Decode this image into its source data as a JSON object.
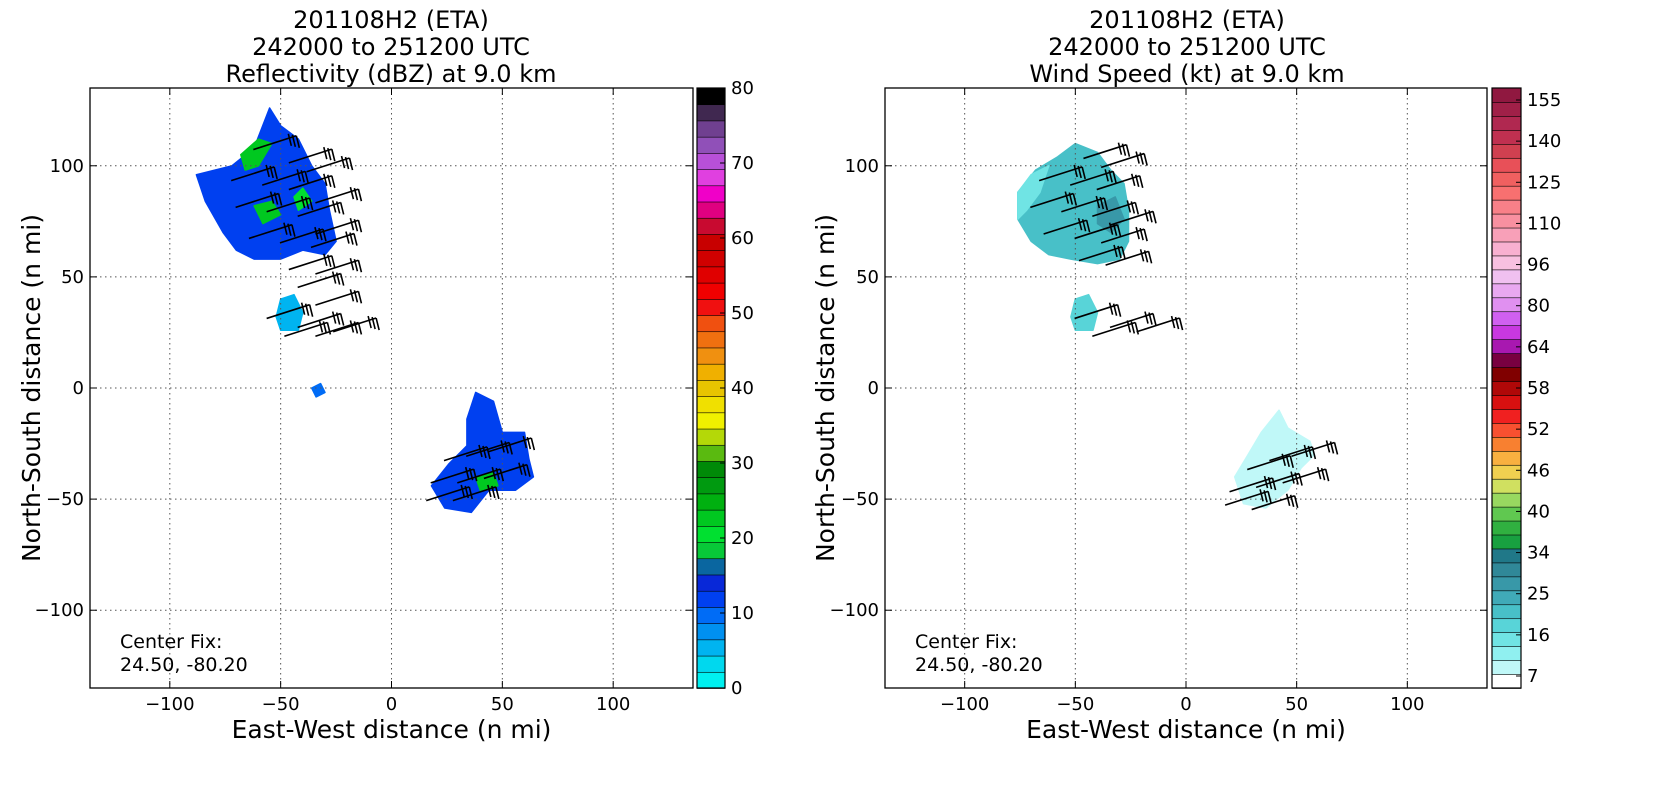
{
  "chart_data": [
    {
      "type": "heatmap",
      "title_lines": [
        "201108H2 (ETA)",
        "242000 to 251200 UTC",
        "Reflectivity (dBZ) at 9.0 km"
      ],
      "xlabel": "East-West distance (n mi)",
      "ylabel": "North-South distance (n mi)",
      "xlim": [
        -136,
        136
      ],
      "ylim": [
        -135,
        135
      ],
      "xticks": [
        -100,
        -50,
        0,
        50,
        100
      ],
      "yticks": [
        -100,
        -50,
        0,
        50,
        100
      ],
      "xtick_labels": [
        "−100",
        "−50",
        "0",
        "50",
        "100"
      ],
      "ytick_labels": [
        "−100",
        "−50",
        "0",
        "50",
        "100"
      ],
      "grid": true,
      "annotation": [
        "Center Fix:",
        "24.50, -80.20"
      ],
      "colorbar": {
        "min": 0,
        "max": 80,
        "tick_values": [
          0,
          10,
          20,
          30,
          40,
          50,
          60,
          70,
          80
        ],
        "tick_labels": [
          "0",
          "10",
          "20",
          "30",
          "40",
          "50",
          "60",
          "70",
          "80"
        ],
        "colors": [
          "#00f0f0",
          "#00d8ee",
          "#00b4f0",
          "#0090f0",
          "#006cf6",
          "#0040f0",
          "#0828d8",
          "#0a66a0",
          "#08c838",
          "#00e030",
          "#00c820",
          "#00b010",
          "#009a10",
          "#008a08",
          "#5aba10",
          "#b4d808",
          "#f0f000",
          "#f0e000",
          "#e8c400",
          "#f0b000",
          "#f09010",
          "#f07010",
          "#f05010",
          "#f01010",
          "#f00000",
          "#e00000",
          "#d00000",
          "#c80000",
          "#c80a30",
          "#e00080",
          "#f000c8",
          "#e040e0",
          "#b850d8",
          "#9050b8",
          "#704090",
          "#402850",
          "#000000"
        ]
      },
      "echo_regions": [
        {
          "name": "north-echo",
          "level_dbz": 12,
          "points": [
            [
              -55,
              126
            ],
            [
              -50,
              118
            ],
            [
              -42,
              112
            ],
            [
              -36,
              100
            ],
            [
              -30,
              92
            ],
            [
              -28,
              80
            ],
            [
              -25,
              66
            ],
            [
              -30,
              60
            ],
            [
              -40,
              62
            ],
            [
              -50,
              58
            ],
            [
              -62,
              58
            ],
            [
              -70,
              62
            ],
            [
              -76,
              70
            ],
            [
              -84,
              84
            ],
            [
              -88,
              96
            ],
            [
              -72,
              100
            ],
            [
              -62,
              108
            ]
          ]
        },
        {
          "name": "north-echo-core-1",
          "level_dbz": 22,
          "points": [
            [
              -68,
              105
            ],
            [
              -60,
              112
            ],
            [
              -54,
              110
            ],
            [
              -60,
              100
            ],
            [
              -66,
              98
            ]
          ]
        },
        {
          "name": "north-echo-core-2",
          "level_dbz": 22,
          "points": [
            [
              -62,
              82
            ],
            [
              -54,
              84
            ],
            [
              -50,
              78
            ],
            [
              -58,
              74
            ]
          ]
        },
        {
          "name": "north-echo-core-3",
          "level_dbz": 20,
          "points": [
            [
              -44,
              86
            ],
            [
              -40,
              90
            ],
            [
              -36,
              84
            ],
            [
              -42,
              80
            ]
          ]
        },
        {
          "name": "mid-echo",
          "level_dbz": 5,
          "points": [
            [
              -50,
              40
            ],
            [
              -44,
              42
            ],
            [
              -40,
              34
            ],
            [
              -42,
              26
            ],
            [
              -50,
              26
            ],
            [
              -52,
              32
            ]
          ]
        },
        {
          "name": "small-echo",
          "level_dbz": 10,
          "points": [
            [
              -36,
              0
            ],
            [
              -32,
              2
            ],
            [
              -30,
              -2
            ],
            [
              -34,
              -4
            ]
          ]
        },
        {
          "name": "south-echo",
          "level_dbz": 11,
          "points": [
            [
              38,
              -2
            ],
            [
              46,
              -6
            ],
            [
              50,
              -20
            ],
            [
              60,
              -20
            ],
            [
              62,
              -32
            ],
            [
              64,
              -40
            ],
            [
              56,
              -46
            ],
            [
              44,
              -46
            ],
            [
              36,
              -56
            ],
            [
              24,
              -54
            ],
            [
              18,
              -44
            ],
            [
              26,
              -34
            ],
            [
              34,
              -26
            ],
            [
              34,
              -14
            ]
          ]
        },
        {
          "name": "south-echo-core",
          "level_dbz": 22,
          "points": [
            [
              38,
              -40
            ],
            [
              46,
              -38
            ],
            [
              48,
              -44
            ],
            [
              40,
              -46
            ]
          ]
        }
      ],
      "wind_barbs": [
        [
          -56,
          110
        ],
        [
          -40,
          104
        ],
        [
          -32,
          100
        ],
        [
          -66,
          96
        ],
        [
          -52,
          94
        ],
        [
          -40,
          92
        ],
        [
          -28,
          86
        ],
        [
          -64,
          84
        ],
        [
          -50,
          82
        ],
        [
          -36,
          80
        ],
        [
          -28,
          72
        ],
        [
          -58,
          70
        ],
        [
          -44,
          68
        ],
        [
          -30,
          66
        ],
        [
          -40,
          56
        ],
        [
          -28,
          54
        ],
        [
          -36,
          48
        ],
        [
          -28,
          40
        ],
        [
          -50,
          34
        ],
        [
          -36,
          30
        ],
        [
          -20,
          28
        ],
        [
          -42,
          26
        ],
        [
          -28,
          26
        ],
        [
          30,
          -30
        ],
        [
          40,
          -28
        ],
        [
          50,
          -26
        ],
        [
          24,
          -40
        ],
        [
          36,
          -40
        ],
        [
          48,
          -38
        ],
        [
          22,
          -48
        ],
        [
          34,
          -48
        ]
      ]
    },
    {
      "type": "heatmap",
      "title_lines": [
        "201108H2 (ETA)",
        "242000 to 251200 UTC",
        "Wind Speed (kt) at 9.0 km"
      ],
      "xlabel": "East-West distance (n mi)",
      "ylabel": "North-South distance (n mi)",
      "xlim": [
        -136,
        136
      ],
      "ylim": [
        -135,
        135
      ],
      "xticks": [
        -100,
        -50,
        0,
        50,
        100
      ],
      "yticks": [
        -100,
        -50,
        0,
        50,
        100
      ],
      "xtick_labels": [
        "−100",
        "−50",
        "0",
        "50",
        "100"
      ],
      "ytick_labels": [
        "−100",
        "−50",
        "0",
        "50",
        "100"
      ],
      "grid": true,
      "annotation": [
        "Center Fix:",
        "24.50, -80.20"
      ],
      "colorbar": {
        "min": 7,
        "max": 160,
        "tick_labels": [
          "7",
          "16",
          "25",
          "34",
          "40",
          "46",
          "52",
          "58",
          "64",
          "80",
          "96",
          "110",
          "125",
          "140",
          "155"
        ],
        "colors": [
          "#ffffff",
          "#c0f8f8",
          "#90f0f0",
          "#70e4e4",
          "#58d4d8",
          "#48c0c8",
          "#40aab8",
          "#3898a8",
          "#308898",
          "#207888",
          "#18a040",
          "#30b040",
          "#60c850",
          "#98d860",
          "#d0e060",
          "#f0d050",
          "#f8b040",
          "#f88030",
          "#f85030",
          "#f02020",
          "#d81010",
          "#b00808",
          "#800000",
          "#780040",
          "#a818b0",
          "#c838e0",
          "#d060f0",
          "#e090f0",
          "#e8a8f0",
          "#f0c0f0",
          "#f8c0e0",
          "#f8b0d0",
          "#f8a0b8",
          "#f890a0",
          "#f88088",
          "#f87070",
          "#f06060",
          "#e85058",
          "#d04050",
          "#c03050",
          "#b02850",
          "#a02048",
          "#901840"
        ]
      },
      "wind_regions": [
        {
          "name": "north-wind",
          "level_kt": 26,
          "points": [
            [
              -50,
              110
            ],
            [
              -40,
              106
            ],
            [
              -34,
              98
            ],
            [
              -28,
              92
            ],
            [
              -26,
              80
            ],
            [
              -26,
              66
            ],
            [
              -30,
              58
            ],
            [
              -40,
              56
            ],
            [
              -52,
              58
            ],
            [
              -62,
              60
            ],
            [
              -70,
              66
            ],
            [
              -76,
              76
            ],
            [
              -76,
              88
            ],
            [
              -68,
              98
            ],
            [
              -58,
              104
            ]
          ]
        },
        {
          "name": "north-wind-light",
          "level_kt": 19,
          "points": [
            [
              -76,
              88
            ],
            [
              -70,
              96
            ],
            [
              -62,
              100
            ],
            [
              -66,
              88
            ],
            [
              -72,
              80
            ],
            [
              -76,
              76
            ]
          ]
        },
        {
          "name": "north-wind-strong",
          "level_kt": 35,
          "points": [
            [
              -40,
              82
            ],
            [
              -32,
              86
            ],
            [
              -28,
              76
            ],
            [
              -34,
              70
            ],
            [
              -40,
              74
            ]
          ]
        },
        {
          "name": "mid-wind",
          "level_kt": 22,
          "points": [
            [
              -50,
              40
            ],
            [
              -44,
              42
            ],
            [
              -40,
              34
            ],
            [
              -42,
              26
            ],
            [
              -50,
              26
            ],
            [
              -52,
              32
            ]
          ]
        },
        {
          "name": "south-wind",
          "level_kt": 14,
          "points": [
            [
              42,
              -10
            ],
            [
              46,
              -18
            ],
            [
              56,
              -24
            ],
            [
              58,
              -30
            ],
            [
              52,
              -36
            ],
            [
              46,
              -46
            ],
            [
              36,
              -54
            ],
            [
              26,
              -52
            ],
            [
              22,
              -40
            ],
            [
              28,
              -30
            ],
            [
              34,
              -20
            ]
          ]
        }
      ],
      "wind_barbs": [
        [
          -40,
          106
        ],
        [
          -32,
          102
        ],
        [
          -60,
          96
        ],
        [
          -46,
          94
        ],
        [
          -34,
          92
        ],
        [
          -64,
          84
        ],
        [
          -50,
          82
        ],
        [
          -36,
          80
        ],
        [
          -28,
          76
        ],
        [
          -58,
          72
        ],
        [
          -44,
          70
        ],
        [
          -32,
          68
        ],
        [
          -42,
          60
        ],
        [
          -30,
          58
        ],
        [
          -44,
          34
        ],
        [
          -28,
          30
        ],
        [
          -16,
          28
        ],
        [
          -36,
          26
        ],
        [
          34,
          -34
        ],
        [
          44,
          -30
        ],
        [
          54,
          -28
        ],
        [
          26,
          -44
        ],
        [
          38,
          -42
        ],
        [
          50,
          -40
        ],
        [
          24,
          -50
        ],
        [
          36,
          -52
        ]
      ]
    }
  ]
}
